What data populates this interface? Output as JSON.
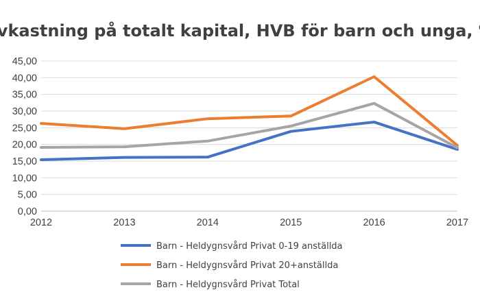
{
  "chart_data": {
    "type": "line",
    "title": "Avkastning på totalt kapital, HVB för barn och unga, %",
    "xlabel": "",
    "ylabel": "",
    "categories": [
      "2012",
      "2013",
      "2014",
      "2015",
      "2016",
      "2017"
    ],
    "ylim": [
      0,
      45
    ],
    "y_ticks": [
      "0,00",
      "5,00",
      "10,00",
      "15,00",
      "20,00",
      "25,00",
      "30,00",
      "35,00",
      "40,00",
      "45,00"
    ],
    "grid": true,
    "legend_position": "bottom",
    "series": [
      {
        "name": "Barn - Heldygnsvård Privat 0-19 anställda",
        "color": "#4472c4",
        "values": [
          15.4,
          16.1,
          16.2,
          23.9,
          26.7,
          18.5
        ]
      },
      {
        "name": "Barn - Heldygnsvård Privat 20+anställda",
        "color": "#ed7d31",
        "values": [
          26.3,
          24.7,
          27.7,
          28.5,
          40.3,
          19.7
        ]
      },
      {
        "name": "Barn - Heldygnsvård Privat Total",
        "color": "#a5a5a5",
        "values": [
          19.1,
          19.3,
          21.0,
          25.5,
          32.3,
          19.0
        ]
      }
    ]
  }
}
